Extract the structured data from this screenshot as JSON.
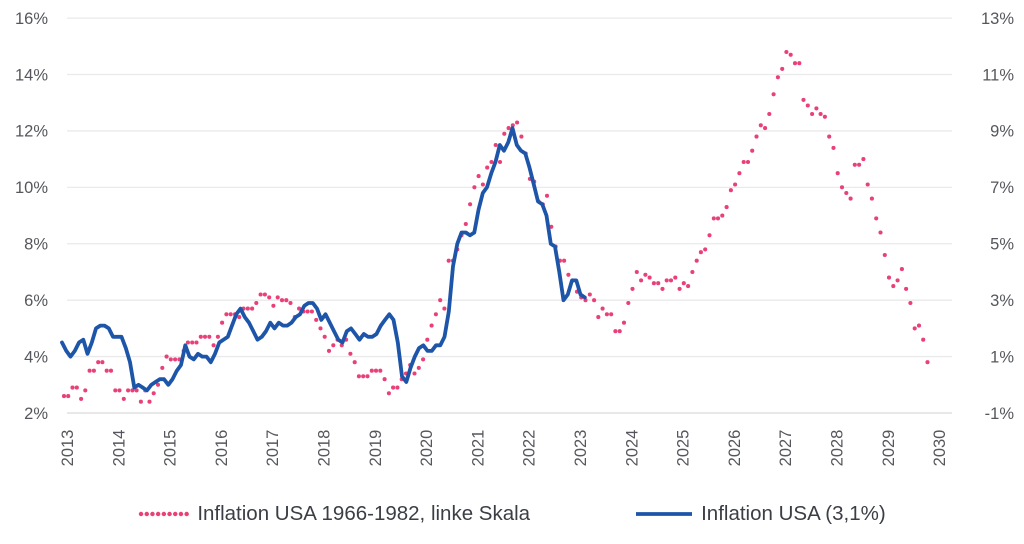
{
  "chart_data": {
    "type": "line",
    "title": "",
    "grid": true,
    "legend_position": "bottom",
    "x_axis": {
      "min": 2013,
      "max": 2030.25,
      "labels": [
        "2013",
        "2014",
        "2015",
        "2016",
        "2017",
        "2018",
        "2019",
        "2020",
        "2021",
        "2022",
        "2023",
        "2024",
        "2025",
        "2026",
        "2027",
        "2028",
        "2029",
        "2030"
      ]
    },
    "left_axis": {
      "min": 2,
      "max": 16,
      "step": 2,
      "ticks": [
        "2%",
        "4%",
        "6%",
        "8%",
        "10%",
        "12%",
        "14%",
        "16%"
      ]
    },
    "right_axis": {
      "min": -1,
      "max": 13,
      "step": 2,
      "ticks": [
        "-1%",
        "1%",
        "3%",
        "5%",
        "7%",
        "9%",
        "11%",
        "13%"
      ]
    },
    "series": [
      {
        "name": "Inflation USA 1966-1982, linke Skala",
        "axis": "left",
        "style": "dotted",
        "color": "#e94077",
        "x_start": 2012.98,
        "x_step": 0.083333,
        "values": [
          2.6,
          2.6,
          2.9,
          2.9,
          2.5,
          2.8,
          3.5,
          3.5,
          3.8,
          3.8,
          3.5,
          3.5,
          2.8,
          2.8,
          2.5,
          2.8,
          2.8,
          2.8,
          2.4,
          2.8,
          2.4,
          2.7,
          3.0,
          3.6,
          4.0,
          3.9,
          3.9,
          3.9,
          4.2,
          4.5,
          4.5,
          4.5,
          4.7,
          4.7,
          4.7,
          4.4,
          4.7,
          5.2,
          5.5,
          5.5,
          5.5,
          5.4,
          5.7,
          5.7,
          5.7,
          5.9,
          6.2,
          6.2,
          6.1,
          5.8,
          6.1,
          6.0,
          6.0,
          5.9,
          5.4,
          5.7,
          5.6,
          5.6,
          5.6,
          5.3,
          5.0,
          4.7,
          4.2,
          4.4,
          4.6,
          4.4,
          4.6,
          4.1,
          3.8,
          3.3,
          3.3,
          3.3,
          3.5,
          3.5,
          3.5,
          3.2,
          2.7,
          2.9,
          2.9,
          3.2,
          3.4,
          3.7,
          3.4,
          3.6,
          3.9,
          4.6,
          5.1,
          5.5,
          6.0,
          5.7,
          7.4,
          7.4,
          7.8,
          8.3,
          8.7,
          9.4,
          10.0,
          10.4,
          10.1,
          10.7,
          10.9,
          11.5,
          10.9,
          11.9,
          12.1,
          12.2,
          12.3,
          11.8,
          11.2,
          10.3,
          10.2,
          9.5,
          9.4,
          9.7,
          8.6,
          7.9,
          7.4,
          7.4,
          6.9,
          6.7,
          6.3,
          6.1,
          6.0,
          6.2,
          6.0,
          5.4,
          5.7,
          5.5,
          5.5,
          4.9,
          4.9,
          5.2,
          5.9,
          6.4,
          7.0,
          6.7,
          6.9,
          6.8,
          6.6,
          6.6,
          6.4,
          6.7,
          6.7,
          6.8,
          6.4,
          6.6,
          6.5,
          7.0,
          7.4,
          7.7,
          7.8,
          8.3,
          8.9,
          8.9,
          9.0,
          9.3,
          9.9,
          10.1,
          10.5,
          10.9,
          10.9,
          11.3,
          11.8,
          12.2,
          12.1,
          12.6,
          13.3,
          13.9,
          14.2,
          14.8,
          14.7,
          14.4,
          14.4,
          13.1,
          12.9,
          12.6,
          12.8,
          12.6,
          12.5,
          11.8,
          11.4,
          10.5,
          10.0,
          9.8,
          9.6,
          10.8,
          10.8,
          11.0,
          10.1,
          9.6,
          8.9,
          8.4,
          7.6,
          6.8,
          6.5,
          6.7,
          7.1,
          6.4,
          5.9,
          5.0,
          5.1,
          4.6,
          3.8
        ]
      },
      {
        "name": "Inflation USA (3,1%)",
        "axis": "right",
        "style": "solid",
        "color": "#1d55a9",
        "x_start": 2012.942,
        "x_step": 0.082846,
        "values": [
          1.5,
          1.2,
          1.0,
          1.2,
          1.5,
          1.6,
          1.1,
          1.5,
          2.0,
          2.1,
          2.1,
          2.0,
          1.7,
          1.7,
          1.7,
          1.3,
          0.8,
          -0.1,
          0.0,
          -0.1,
          -0.2,
          0.0,
          0.1,
          0.2,
          0.2,
          0.0,
          0.2,
          0.5,
          0.7,
          1.4,
          1.0,
          0.9,
          1.1,
          1.0,
          1.0,
          0.8,
          1.1,
          1.5,
          1.6,
          1.7,
          2.1,
          2.5,
          2.7,
          2.4,
          2.2,
          1.9,
          1.6,
          1.7,
          1.9,
          2.2,
          2.0,
          2.2,
          2.1,
          2.1,
          2.2,
          2.4,
          2.5,
          2.8,
          2.9,
          2.9,
          2.7,
          2.3,
          2.5,
          2.2,
          1.9,
          1.6,
          1.5,
          1.9,
          2.0,
          1.8,
          1.6,
          1.8,
          1.7,
          1.7,
          1.8,
          2.1,
          2.3,
          2.5,
          2.3,
          1.5,
          0.3,
          0.1,
          0.6,
          1.0,
          1.3,
          1.4,
          1.2,
          1.2,
          1.4,
          1.4,
          1.7,
          2.6,
          4.2,
          5.0,
          5.4,
          5.4,
          5.3,
          5.4,
          6.2,
          6.8,
          7.0,
          7.5,
          7.9,
          8.5,
          8.3,
          8.6,
          9.1,
          8.5,
          8.3,
          8.2,
          7.7,
          7.1,
          6.5,
          6.4,
          6.0,
          5.0,
          4.9,
          4.0,
          3.0,
          3.2,
          3.7,
          3.7,
          3.2,
          3.1
        ]
      }
    ],
    "colors": {
      "grid": "#eaeaec",
      "baseline": "#d9dadd",
      "axis_text": "#55575c",
      "legend_text": "#3b3e45"
    }
  },
  "legend": {
    "item1": "Inflation USA 1966-1982, linke Skala",
    "item2": "Inflation USA (3,1%)"
  }
}
